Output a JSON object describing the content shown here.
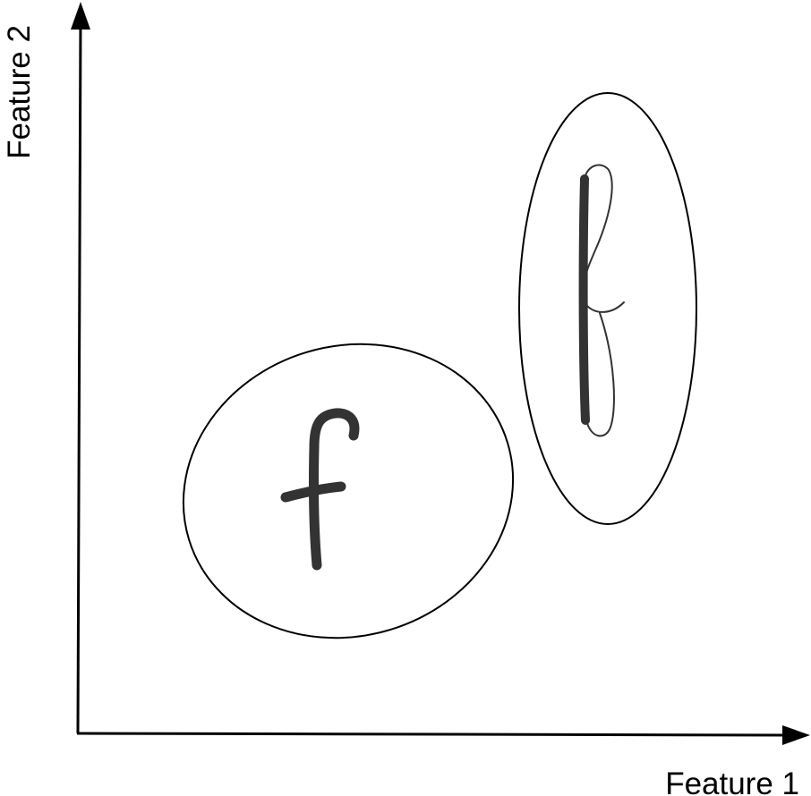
{
  "axes": {
    "x_label": "Feature 1",
    "y_label": "Feature 2"
  },
  "clusters": [
    {
      "glyph": "f",
      "style": "short handwritten lowercase f"
    },
    {
      "glyph": "f",
      "style": "tall looped lowercase f"
    }
  ],
  "colors": {
    "axis": "#000000",
    "ellipse_stroke": "#000000",
    "glyph": "#333333",
    "background": "#ffffff"
  }
}
